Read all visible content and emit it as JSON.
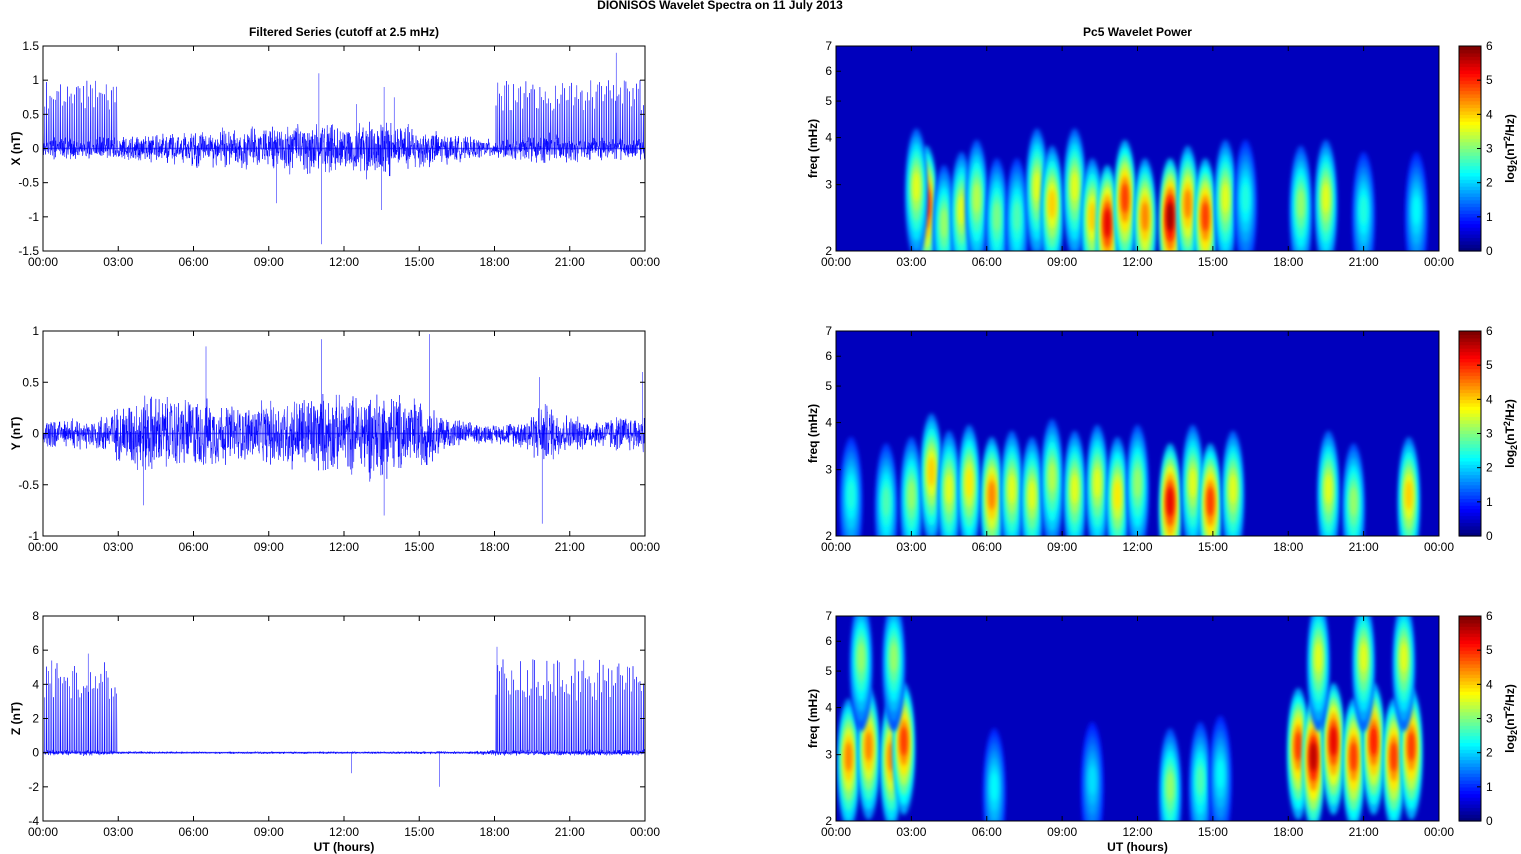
{
  "figure": {
    "title": "DIONISOS Wavelet Spectra on 11 July      2013",
    "left_title": "Filtered Series (cutoff at 2.5 mHz)",
    "right_title": "Pc5 Wavelet Power",
    "xlabel": "UT (hours)",
    "freq_label": "freq (mHz)",
    "colorbar_label": "log2(nT2/Hz)"
  },
  "colors": {
    "trace": "#0000ff",
    "axis": "#000000"
  },
  "chart_data": [
    {
      "type": "line",
      "component": "X",
      "title": "Filtered Series (cutoff at 2.5 mHz)",
      "ylabel": "X (nT)",
      "xlabel": "",
      "x_ticks": [
        "00:00",
        "03:00",
        "06:00",
        "09:00",
        "12:00",
        "15:00",
        "18:00",
        "21:00",
        "00:00"
      ],
      "xlim": [
        0,
        24
      ],
      "ylim": [
        -1.5,
        1.5
      ],
      "y_ticks": [
        "-1.5",
        "-1",
        "-0.5",
        "0",
        "0.5",
        "1",
        "1.5"
      ],
      "envelope": {
        "t": [
          0,
          1,
          2,
          3,
          4,
          5,
          6,
          7,
          8,
          9,
          10,
          11,
          12,
          13,
          14,
          15,
          16,
          17,
          18,
          19,
          20,
          21,
          22,
          23,
          24
        ],
        "amp": [
          0.18,
          0.18,
          0.18,
          0.2,
          0.22,
          0.25,
          0.3,
          0.32,
          0.32,
          0.35,
          0.4,
          0.42,
          0.35,
          0.5,
          0.45,
          0.35,
          0.25,
          0.18,
          0.15,
          0.18,
          0.25,
          0.22,
          0.18,
          0.18,
          0.18
        ]
      },
      "spikes": {
        "height": 1.0,
        "intervals": [
          [
            0,
            3
          ],
          [
            18,
            24
          ]
        ]
      },
      "extremes": [
        {
          "t": 11.1,
          "v": -1.4
        },
        {
          "t": 11.0,
          "v": 1.1
        },
        {
          "t": 13.5,
          "v": -0.9
        },
        {
          "t": 13.6,
          "v": 0.9
        },
        {
          "t": 9.3,
          "v": -0.8
        },
        {
          "t": 12.5,
          "v": 0.65
        },
        {
          "t": 14.0,
          "v": 0.75
        },
        {
          "t": 22.85,
          "v": 1.4
        }
      ]
    },
    {
      "type": "line",
      "component": "Y",
      "title": "",
      "ylabel": "Y (nT)",
      "xlabel": "",
      "x_ticks": [
        "00:00",
        "03:00",
        "06:00",
        "09:00",
        "12:00",
        "15:00",
        "18:00",
        "21:00",
        "00:00"
      ],
      "xlim": [
        0,
        24
      ],
      "ylim": [
        -1,
        1
      ],
      "y_ticks": [
        "-1",
        "-0.5",
        "0",
        "0.5",
        "1"
      ],
      "envelope": {
        "t": [
          0,
          1,
          2,
          3,
          4,
          5,
          6,
          7,
          8,
          9,
          10,
          11,
          12,
          13,
          14,
          15,
          16,
          17,
          18,
          19,
          20,
          21,
          22,
          23,
          24
        ],
        "amp": [
          0.15,
          0.15,
          0.18,
          0.3,
          0.45,
          0.4,
          0.4,
          0.35,
          0.3,
          0.35,
          0.4,
          0.45,
          0.4,
          0.5,
          0.45,
          0.4,
          0.2,
          0.12,
          0.1,
          0.15,
          0.35,
          0.2,
          0.15,
          0.2,
          0.2
        ]
      },
      "spikes": {
        "height": 0,
        "intervals": []
      },
      "extremes": [
        {
          "t": 11.1,
          "v": 0.92
        },
        {
          "t": 15.4,
          "v": 0.97
        },
        {
          "t": 6.5,
          "v": 0.85
        },
        {
          "t": 13.6,
          "v": -0.8
        },
        {
          "t": 19.9,
          "v": -0.88
        },
        {
          "t": 4.0,
          "v": -0.7
        },
        {
          "t": 23.9,
          "v": 0.6
        },
        {
          "t": 19.8,
          "v": 0.55
        }
      ]
    },
    {
      "type": "line",
      "component": "Z",
      "title": "",
      "ylabel": "Z (nT)",
      "xlabel": "UT (hours)",
      "x_ticks": [
        "00:00",
        "03:00",
        "06:00",
        "09:00",
        "12:00",
        "15:00",
        "18:00",
        "21:00",
        "00:00"
      ],
      "xlim": [
        0,
        24
      ],
      "ylim": [
        -4,
        8
      ],
      "y_ticks": [
        "-4",
        "-2",
        "0",
        "2",
        "4",
        "6",
        "8"
      ],
      "envelope": {
        "t": [
          0,
          1,
          2,
          3,
          4,
          5,
          6,
          7,
          8,
          9,
          10,
          11,
          12,
          13,
          14,
          15,
          16,
          17,
          18,
          19,
          20,
          21,
          22,
          23,
          24
        ],
        "amp": [
          0.2,
          0.2,
          0.2,
          0.1,
          0.08,
          0.08,
          0.08,
          0.08,
          0.08,
          0.08,
          0.08,
          0.08,
          0.08,
          0.08,
          0.08,
          0.1,
          0.1,
          0.08,
          0.2,
          0.2,
          0.2,
          0.2,
          0.2,
          0.2,
          0.2
        ]
      },
      "spikes": {
        "height": 5.5,
        "intervals": [
          [
            0,
            3
          ],
          [
            18,
            24
          ]
        ]
      },
      "extremes": [
        {
          "t": 12.3,
          "v": -1.2
        },
        {
          "t": 15.8,
          "v": -2.0
        },
        {
          "t": 1.8,
          "v": 5.8
        },
        {
          "t": 18.1,
          "v": 6.2
        }
      ]
    },
    {
      "type": "heatmap",
      "component": "X",
      "title": "Pc5 Wavelet Power",
      "ylabel": "freq (mHz)",
      "xlabel": "",
      "x_ticks": [
        "00:00",
        "03:00",
        "06:00",
        "09:00",
        "12:00",
        "15:00",
        "18:00",
        "21:00",
        "00:00"
      ],
      "xlim": [
        0,
        24
      ],
      "ylim": [
        2,
        7
      ],
      "y_scale": "log",
      "y_ticks": [
        "2",
        "3",
        "4",
        "5",
        "6",
        "7"
      ],
      "colorbar": {
        "label": "log2(nT2/Hz)",
        "range": [
          0,
          6
        ],
        "ticks": [
          "0",
          "1",
          "2",
          "3",
          "4",
          "5",
          "6"
        ],
        "colormap": "jet"
      },
      "blobs": [
        {
          "t": 3.6,
          "f": 2.7,
          "p": 5.2
        },
        {
          "t": 3.2,
          "f": 3.0,
          "p": 3.5
        },
        {
          "t": 4.3,
          "f": 2.4,
          "p": 3.0
        },
        {
          "t": 5.0,
          "f": 2.6,
          "p": 3.5
        },
        {
          "t": 5.6,
          "f": 2.8,
          "p": 3.2
        },
        {
          "t": 6.4,
          "f": 2.5,
          "p": 2.8
        },
        {
          "t": 7.2,
          "f": 2.5,
          "p": 2.5
        },
        {
          "t": 8.0,
          "f": 3.0,
          "p": 3.5
        },
        {
          "t": 8.6,
          "f": 2.7,
          "p": 4.0
        },
        {
          "t": 9.5,
          "f": 3.0,
          "p": 3.5
        },
        {
          "t": 10.2,
          "f": 2.5,
          "p": 4.0
        },
        {
          "t": 10.8,
          "f": 2.4,
          "p": 5.5
        },
        {
          "t": 11.5,
          "f": 2.8,
          "p": 5.0
        },
        {
          "t": 12.3,
          "f": 2.5,
          "p": 4.5
        },
        {
          "t": 13.3,
          "f": 2.5,
          "p": 6.0
        },
        {
          "t": 14.0,
          "f": 2.7,
          "p": 4.5
        },
        {
          "t": 14.7,
          "f": 2.5,
          "p": 5.0
        },
        {
          "t": 15.5,
          "f": 2.8,
          "p": 3.5
        },
        {
          "t": 16.3,
          "f": 2.8,
          "p": 2.2
        },
        {
          "t": 18.5,
          "f": 2.7,
          "p": 3.0
        },
        {
          "t": 19.5,
          "f": 2.8,
          "p": 3.5
        },
        {
          "t": 21.0,
          "f": 2.6,
          "p": 2.2
        },
        {
          "t": 23.1,
          "f": 2.6,
          "p": 2.0
        }
      ]
    },
    {
      "type": "heatmap",
      "component": "Y",
      "title": "",
      "ylabel": "freq (mHz)",
      "xlabel": "",
      "x_ticks": [
        "00:00",
        "03:00",
        "06:00",
        "09:00",
        "12:00",
        "15:00",
        "18:00",
        "21:00",
        "00:00"
      ],
      "xlim": [
        0,
        24
      ],
      "ylim": [
        2,
        7
      ],
      "y_scale": "log",
      "y_ticks": [
        "2",
        "3",
        "4",
        "5",
        "6",
        "7"
      ],
      "colorbar": {
        "label": "log2(nT2/Hz)",
        "range": [
          0,
          6
        ],
        "ticks": [
          "0",
          "1",
          "2",
          "3",
          "4",
          "5",
          "6"
        ],
        "colormap": "jet"
      },
      "blobs": [
        {
          "t": 0.6,
          "f": 2.6,
          "p": 2.2
        },
        {
          "t": 2.0,
          "f": 2.5,
          "p": 2.5
        },
        {
          "t": 3.0,
          "f": 2.6,
          "p": 3.0
        },
        {
          "t": 3.8,
          "f": 3.0,
          "p": 4.0
        },
        {
          "t": 4.5,
          "f": 2.7,
          "p": 3.5
        },
        {
          "t": 5.3,
          "f": 2.8,
          "p": 3.8
        },
        {
          "t": 6.2,
          "f": 2.6,
          "p": 4.5
        },
        {
          "t": 7.0,
          "f": 2.7,
          "p": 3.5
        },
        {
          "t": 7.8,
          "f": 2.6,
          "p": 3.5
        },
        {
          "t": 8.6,
          "f": 2.9,
          "p": 3.2
        },
        {
          "t": 9.5,
          "f": 2.7,
          "p": 3.5
        },
        {
          "t": 10.4,
          "f": 2.8,
          "p": 3.5
        },
        {
          "t": 11.2,
          "f": 2.6,
          "p": 3.8
        },
        {
          "t": 12.0,
          "f": 2.8,
          "p": 3.0
        },
        {
          "t": 13.3,
          "f": 2.5,
          "p": 5.5
        },
        {
          "t": 14.2,
          "f": 2.8,
          "p": 3.5
        },
        {
          "t": 14.9,
          "f": 2.5,
          "p": 5.0
        },
        {
          "t": 15.8,
          "f": 2.7,
          "p": 3.5
        },
        {
          "t": 19.6,
          "f": 2.7,
          "p": 3.5
        },
        {
          "t": 20.6,
          "f": 2.5,
          "p": 3.0
        },
        {
          "t": 22.8,
          "f": 2.6,
          "p": 4.0
        }
      ]
    },
    {
      "type": "heatmap",
      "component": "Z",
      "title": "",
      "ylabel": "freq (mHz)",
      "xlabel": "UT (hours)",
      "x_ticks": [
        "00:00",
        "03:00",
        "06:00",
        "09:00",
        "12:00",
        "15:00",
        "18:00",
        "21:00",
        "00:00"
      ],
      "xlim": [
        0,
        24
      ],
      "ylim": [
        2,
        7
      ],
      "y_scale": "log",
      "y_ticks": [
        "2",
        "3",
        "4",
        "5",
        "6",
        "7"
      ],
      "colorbar": {
        "label": "log2(nT2/Hz)",
        "range": [
          0,
          6
        ],
        "ticks": [
          "0",
          "1",
          "2",
          "3",
          "4",
          "5",
          "6"
        ],
        "colormap": "jet"
      },
      "blobs": [
        {
          "t": 0.5,
          "f": 3.0,
          "p": 4.5
        },
        {
          "t": 1.3,
          "f": 3.2,
          "p": 4.5
        },
        {
          "t": 2.2,
          "f": 3.0,
          "p": 4.5
        },
        {
          "t": 2.7,
          "f": 3.3,
          "p": 5.0
        },
        {
          "t": 1.0,
          "f": 5.5,
          "p": 3.0
        },
        {
          "t": 2.3,
          "f": 5.5,
          "p": 3.0
        },
        {
          "t": 6.3,
          "f": 2.5,
          "p": 2.0
        },
        {
          "t": 10.2,
          "f": 2.6,
          "p": 1.8
        },
        {
          "t": 13.3,
          "f": 2.5,
          "p": 3.0
        },
        {
          "t": 14.5,
          "f": 2.6,
          "p": 2.5
        },
        {
          "t": 15.3,
          "f": 2.7,
          "p": 2.0
        },
        {
          "t": 18.4,
          "f": 3.2,
          "p": 5.0
        },
        {
          "t": 19.0,
          "f": 3.0,
          "p": 5.8
        },
        {
          "t": 19.8,
          "f": 3.3,
          "p": 5.5
        },
        {
          "t": 20.6,
          "f": 3.0,
          "p": 5.0
        },
        {
          "t": 21.4,
          "f": 3.3,
          "p": 5.2
        },
        {
          "t": 22.2,
          "f": 3.0,
          "p": 5.0
        },
        {
          "t": 22.9,
          "f": 3.2,
          "p": 5.0
        },
        {
          "t": 19.2,
          "f": 5.5,
          "p": 3.5
        },
        {
          "t": 21.0,
          "f": 5.5,
          "p": 3.5
        },
        {
          "t": 22.6,
          "f": 5.5,
          "p": 3.5
        }
      ]
    }
  ]
}
